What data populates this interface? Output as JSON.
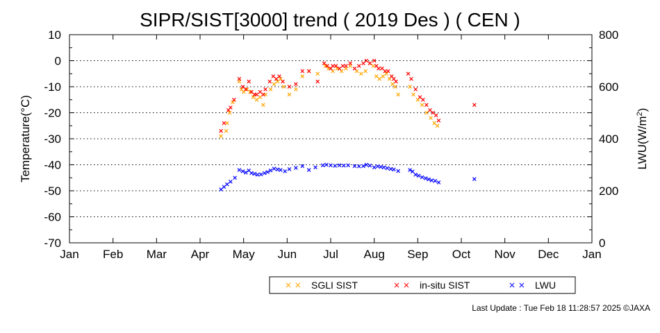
{
  "footer": {
    "text": "Last Update : Tue Feb 18 11:28:57 2025 ©JAXA"
  },
  "chart_data": {
    "type": "scatter",
    "title": "SIPR/SIST[3000] trend ( 2019 Des ) ( CEN )",
    "ylabel": "Temperature(°C)",
    "y2label_base": "LWU(W/m",
    "y2label_sup": "2",
    "y2label_end": ")",
    "ylim": [
      -70,
      10
    ],
    "y2lim": [
      0,
      800
    ],
    "yticks": [
      10,
      0,
      -10,
      -20,
      -30,
      -40,
      -50,
      -60,
      -70
    ],
    "y2ticks": [
      800,
      600,
      400,
      200,
      0
    ],
    "xlim": [
      0,
      12
    ],
    "months": [
      "Jan",
      "Feb",
      "Mar",
      "Apr",
      "May",
      "Jun",
      "Jul",
      "Aug",
      "Sep",
      "Oct",
      "Nov",
      "Dec",
      "Jan"
    ],
    "grid": "dotted horizontal",
    "legend_position": "bottom",
    "marker": "×",
    "series": [
      {
        "name": "SGLI SIST",
        "color": "#ffa500",
        "axis": "left",
        "points": [
          [
            3.48,
            -29
          ],
          [
            3.6,
            -27
          ],
          [
            3.62,
            -24
          ],
          [
            3.68,
            -20
          ],
          [
            3.75,
            -16
          ],
          [
            3.9,
            -8
          ],
          [
            3.95,
            -11
          ],
          [
            4.0,
            -12
          ],
          [
            4.08,
            -11
          ],
          [
            4.15,
            -12
          ],
          [
            4.22,
            -14
          ],
          [
            4.3,
            -15
          ],
          [
            4.38,
            -14
          ],
          [
            4.45,
            -17
          ],
          [
            4.5,
            -13
          ],
          [
            4.62,
            -11
          ],
          [
            4.7,
            -9
          ],
          [
            4.78,
            -8
          ],
          [
            4.85,
            -7
          ],
          [
            4.92,
            -10
          ],
          [
            5.05,
            -13
          ],
          [
            5.2,
            -11
          ],
          [
            5.35,
            -6
          ],
          [
            5.5,
            -4
          ],
          [
            5.7,
            -5
          ],
          [
            5.88,
            -2
          ],
          [
            5.95,
            -3
          ],
          [
            6.05,
            -4
          ],
          [
            6.15,
            -3
          ],
          [
            6.25,
            -4
          ],
          [
            6.35,
            -3
          ],
          [
            6.45,
            -2
          ],
          [
            6.6,
            -4
          ],
          [
            6.7,
            -5
          ],
          [
            6.8,
            -4
          ],
          [
            6.9,
            -1
          ],
          [
            6.98,
            -2
          ],
          [
            7.05,
            -6
          ],
          [
            7.12,
            -7
          ],
          [
            7.2,
            -6
          ],
          [
            7.28,
            -5
          ],
          [
            7.35,
            -7
          ],
          [
            7.42,
            -9
          ],
          [
            7.48,
            -10
          ],
          [
            7.55,
            -13
          ],
          [
            7.82,
            -10
          ],
          [
            7.9,
            -13
          ],
          [
            8.0,
            -15
          ],
          [
            8.1,
            -17
          ],
          [
            8.2,
            -20
          ],
          [
            8.3,
            -22
          ],
          [
            8.38,
            -24
          ],
          [
            8.45,
            -25
          ]
        ]
      },
      {
        "name": "in-situ SIST",
        "color": "#ff0000",
        "axis": "left",
        "points": [
          [
            3.48,
            -27
          ],
          [
            3.55,
            -24
          ],
          [
            3.65,
            -19
          ],
          [
            3.7,
            -18
          ],
          [
            3.78,
            -15
          ],
          [
            3.9,
            -7
          ],
          [
            3.98,
            -10
          ],
          [
            4.05,
            -11
          ],
          [
            4.12,
            -8
          ],
          [
            4.18,
            -12
          ],
          [
            4.25,
            -13
          ],
          [
            4.3,
            -13
          ],
          [
            4.38,
            -12
          ],
          [
            4.45,
            -13
          ],
          [
            4.5,
            -11
          ],
          [
            4.6,
            -8
          ],
          [
            4.68,
            -6
          ],
          [
            4.75,
            -7
          ],
          [
            4.82,
            -6
          ],
          [
            4.9,
            -8
          ],
          [
            5.05,
            -10
          ],
          [
            5.2,
            -9
          ],
          [
            5.35,
            -4
          ],
          [
            5.5,
            -4
          ],
          [
            5.7,
            -8
          ],
          [
            5.85,
            -1
          ],
          [
            5.92,
            -2
          ],
          [
            6.0,
            -3
          ],
          [
            6.05,
            -2
          ],
          [
            6.12,
            -2
          ],
          [
            6.2,
            -3
          ],
          [
            6.28,
            -2
          ],
          [
            6.35,
            -2
          ],
          [
            6.45,
            -1
          ],
          [
            6.55,
            -3
          ],
          [
            6.65,
            -2
          ],
          [
            6.75,
            -1
          ],
          [
            6.82,
            0
          ],
          [
            6.9,
            -1
          ],
          [
            7.0,
            0
          ],
          [
            7.05,
            -2
          ],
          [
            7.1,
            -3
          ],
          [
            7.18,
            -3
          ],
          [
            7.25,
            -4
          ],
          [
            7.32,
            -4
          ],
          [
            7.4,
            -6
          ],
          [
            7.45,
            -7
          ],
          [
            7.5,
            -8
          ],
          [
            7.78,
            -5
          ],
          [
            7.85,
            -7
          ],
          [
            7.95,
            -11
          ],
          [
            8.05,
            -14
          ],
          [
            8.12,
            -15
          ],
          [
            8.2,
            -17
          ],
          [
            8.28,
            -19
          ],
          [
            8.35,
            -20
          ],
          [
            8.42,
            -21
          ],
          [
            8.48,
            -23
          ],
          [
            9.3,
            -17
          ]
        ]
      },
      {
        "name": "LWU",
        "color": "#0000ff",
        "axis": "right",
        "points": [
          [
            3.48,
            205
          ],
          [
            3.55,
            215
          ],
          [
            3.62,
            225
          ],
          [
            3.7,
            235
          ],
          [
            3.8,
            250
          ],
          [
            3.9,
            280
          ],
          [
            3.98,
            275
          ],
          [
            4.05,
            270
          ],
          [
            4.12,
            278
          ],
          [
            4.18,
            268
          ],
          [
            4.25,
            265
          ],
          [
            4.32,
            262
          ],
          [
            4.4,
            263
          ],
          [
            4.48,
            268
          ],
          [
            4.55,
            272
          ],
          [
            4.62,
            278
          ],
          [
            4.7,
            285
          ],
          [
            4.78,
            282
          ],
          [
            4.85,
            280
          ],
          [
            4.95,
            275
          ],
          [
            5.05,
            283
          ],
          [
            5.2,
            288
          ],
          [
            5.35,
            295
          ],
          [
            5.5,
            280
          ],
          [
            5.65,
            290
          ],
          [
            5.82,
            298
          ],
          [
            5.9,
            300
          ],
          [
            6.0,
            298
          ],
          [
            6.1,
            296
          ],
          [
            6.2,
            298
          ],
          [
            6.3,
            297
          ],
          [
            6.4,
            298
          ],
          [
            6.55,
            295
          ],
          [
            6.65,
            294
          ],
          [
            6.75,
            295
          ],
          [
            6.82,
            300
          ],
          [
            6.9,
            297
          ],
          [
            7.0,
            290
          ],
          [
            7.08,
            294
          ],
          [
            7.15,
            292
          ],
          [
            7.22,
            290
          ],
          [
            7.3,
            287
          ],
          [
            7.38,
            284
          ],
          [
            7.45,
            282
          ],
          [
            7.55,
            276
          ],
          [
            7.82,
            280
          ],
          [
            7.88,
            274
          ],
          [
            7.95,
            262
          ],
          [
            8.02,
            258
          ],
          [
            8.1,
            252
          ],
          [
            8.18,
            248
          ],
          [
            8.25,
            244
          ],
          [
            8.32,
            240
          ],
          [
            8.4,
            238
          ],
          [
            8.48,
            232
          ],
          [
            9.3,
            245
          ]
        ]
      }
    ]
  }
}
